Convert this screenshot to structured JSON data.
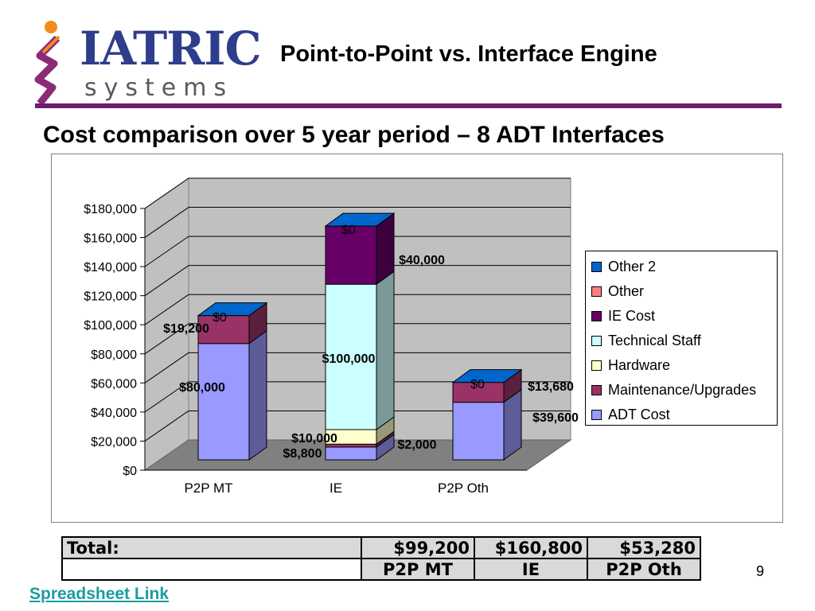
{
  "logo": {
    "main_text": "IATRIC",
    "sub_text": "systems"
  },
  "slide": {
    "title": "Point-to-Point vs. Interface Engine",
    "subtitle": "Cost comparison over 5 year period –  8 ADT Interfaces",
    "page_number": "9",
    "link_text": "Spreadsheet Link"
  },
  "chart_data": {
    "type": "bar",
    "stacked": true,
    "three_d": true,
    "categories": [
      "P2P MT",
      "IE",
      "P2P Oth"
    ],
    "ylim": [
      0,
      180000
    ],
    "ytick_labels": [
      "$0",
      "$20,000",
      "$40,000",
      "$60,000",
      "$80,000",
      "$100,000",
      "$120,000",
      "$140,000",
      "$160,000",
      "$180,000"
    ],
    "grid": true,
    "legend_position": "right",
    "series": [
      {
        "name": "ADT Cost",
        "values": [
          80000,
          8800,
          39600
        ],
        "color": "#9999ff",
        "labels": [
          "$80,000",
          "$8,800",
          "$39,600"
        ]
      },
      {
        "name": "Maintenance/Upgrades",
        "values": [
          19200,
          2000,
          13680
        ],
        "color": "#993366",
        "labels": [
          "$19,200",
          "$2,000",
          "$13,680"
        ]
      },
      {
        "name": "Hardware",
        "values": [
          0,
          10000,
          0
        ],
        "color": "#ffffcc",
        "labels": [
          "",
          "$10,000",
          ""
        ]
      },
      {
        "name": "Technical Staff",
        "values": [
          0,
          100000,
          0
        ],
        "color": "#ccffff",
        "labels": [
          "",
          "$100,000",
          ""
        ]
      },
      {
        "name": "IE Cost",
        "values": [
          0,
          40000,
          0
        ],
        "color": "#660066",
        "labels": [
          "",
          "$40,000",
          ""
        ]
      },
      {
        "name": "Other",
        "values": [
          0,
          0,
          0
        ],
        "color": "#ff8080",
        "labels": [
          "",
          "",
          ""
        ]
      },
      {
        "name": "Other 2",
        "values": [
          0,
          0,
          0
        ],
        "color": "#0066cc",
        "labels": [
          "$0",
          "$0",
          "$0"
        ]
      }
    ]
  },
  "totals_table": {
    "total_label": "Total:",
    "totals": [
      "$99,200",
      "$160,800",
      "$53,280"
    ],
    "categories": [
      "P2P MT",
      "IE",
      "P2P Oth"
    ]
  }
}
